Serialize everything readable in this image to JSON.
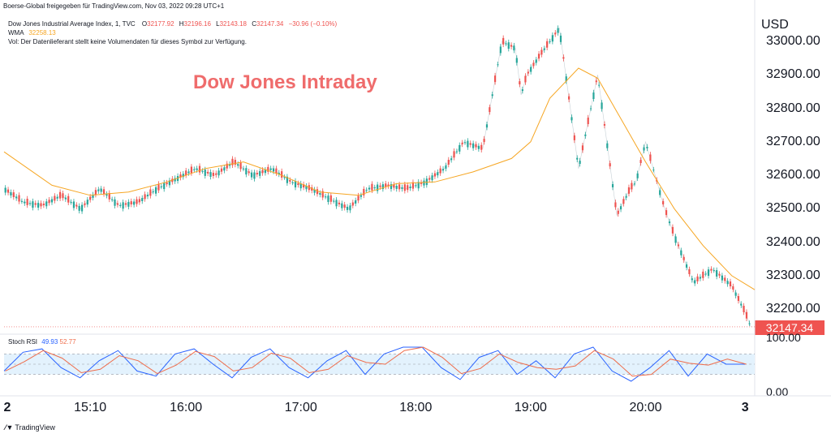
{
  "header": {
    "published_by": "Boerse-Global freigegeben für TradingView.com, Nov 03, 2022 09:28 UTC+1"
  },
  "legend": {
    "symbol_line": "Dow Jones Industrial Average Index, 1, TVC",
    "o_label": "O",
    "o_value": "32177.92",
    "h_label": "H",
    "h_value": "32196.16",
    "l_label": "L",
    "l_value": "32143.18",
    "c_label": "C",
    "c_value": "32147.34",
    "change": "−30.96 (−0.10%)",
    "wma_label": "WMA",
    "wma_value": "32258.13",
    "vol_note": "Vol: Der Datenlieferant stellt keine Volumendaten für dieses Symbol zur Verfügung."
  },
  "chart_title": "Dow Jones Intraday",
  "currency": "USD",
  "last_price_label": "32147.34",
  "stoch_rsi": {
    "label": "Stoch RSI",
    "k_value": "49.93",
    "d_value": "52.77",
    "ticks": [
      "100.00",
      "0.00"
    ]
  },
  "branding": "TradingView",
  "colors": {
    "up": "#26a69a",
    "down": "#ef5350",
    "wma": "#f6a623",
    "rsi_k": "#2962ff",
    "rsi_d": "#ef6c4a",
    "rsi_band": "#e3f2fd"
  },
  "chart_data": {
    "type": "line",
    "y_ticks": [
      "33000.00",
      "32900.00",
      "32800.00",
      "32700.00",
      "32600.00",
      "32500.00",
      "32400.00",
      "32300.00",
      "32200.00"
    ],
    "ylim": [
      32130,
      33080
    ],
    "x_ticks": [
      "2",
      "15:10",
      "16:00",
      "17:00",
      "18:00",
      "19:00",
      "20:00",
      "3"
    ],
    "x_tick_minutes": [
      -5,
      40,
      90,
      150,
      210,
      270,
      330,
      382
    ],
    "x_range_minutes": [
      -5,
      387
    ],
    "series": [
      {
        "name": "Dow Jones Industrial Average Index",
        "kind": "price",
        "x": [
          -5,
          5,
          15,
          25,
          35,
          45,
          55,
          65,
          75,
          85,
          95,
          105,
          115,
          125,
          135,
          145,
          155,
          165,
          175,
          185,
          195,
          205,
          215,
          225,
          235,
          245,
          255,
          262,
          265,
          268,
          275,
          285,
          295,
          305,
          315,
          322,
          325,
          330,
          335,
          340,
          345,
          355,
          365,
          375,
          382,
          385
        ],
        "values": [
          32560,
          32520,
          32510,
          32540,
          32500,
          32560,
          32510,
          32520,
          32560,
          32590,
          32620,
          32600,
          32640,
          32600,
          32620,
          32580,
          32560,
          32530,
          32500,
          32560,
          32570,
          32560,
          32580,
          32620,
          32700,
          32680,
          33000,
          32980,
          32840,
          32900,
          32960,
          33040,
          32620,
          32900,
          32480,
          32560,
          32580,
          32700,
          32600,
          32500,
          32420,
          32280,
          32320,
          32270,
          32190,
          32147
        ]
      },
      {
        "name": "WMA",
        "kind": "wma",
        "x": [
          -5,
          20,
          40,
          60,
          80,
          100,
          120,
          140,
          160,
          180,
          200,
          220,
          240,
          260,
          270,
          280,
          295,
          305,
          315,
          330,
          345,
          360,
          375,
          387
        ],
        "values": [
          32670,
          32570,
          32540,
          32550,
          32580,
          32620,
          32640,
          32600,
          32550,
          32540,
          32575,
          32580,
          32610,
          32650,
          32700,
          32830,
          32920,
          32890,
          32790,
          32640,
          32500,
          32390,
          32300,
          32258
        ]
      }
    ],
    "stoch_rsi": {
      "ylim": [
        0,
        100
      ],
      "bands": [
        20,
        80
      ],
      "k": [
        30,
        85,
        95,
        40,
        10,
        60,
        90,
        30,
        15,
        80,
        95,
        50,
        10,
        70,
        95,
        40,
        10,
        60,
        90,
        20,
        80,
        100,
        100,
        40,
        5,
        70,
        90,
        20,
        60,
        10,
        80,
        100,
        30,
        0,
        40,
        90,
        15,
        80,
        50,
        50
      ]
    }
  }
}
